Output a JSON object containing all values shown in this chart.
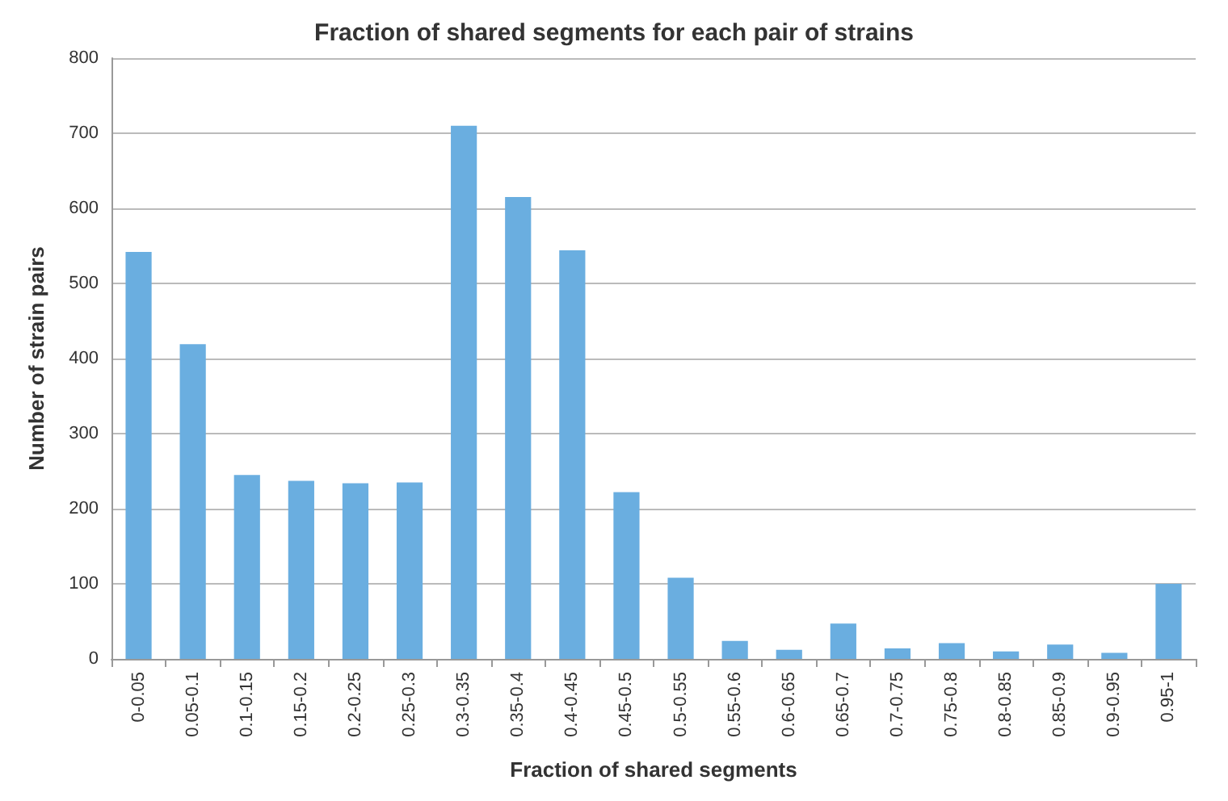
{
  "chart_data": {
    "type": "bar",
    "title": "Fraction of shared segments for each pair of strains",
    "xlabel": "Fraction of shared segments",
    "ylabel": "Number of strain pairs",
    "categories": [
      "0-0.05",
      "0.05-0.1",
      "0.1-0.15",
      "0.15-0.2",
      "0.2-0.25",
      "0.25-0.3",
      "0.3-0.35",
      "0.35-0.4",
      "0.4-0.45",
      "0.45-0.5",
      "0.5-0.55",
      "0.55-0.6",
      "0.6-0.65",
      "0.65-0.7",
      "0.7-0.75",
      "0.75-0.8",
      "0.8-0.85",
      "0.85-0.9",
      "0.9-0.95",
      "0.95-1"
    ],
    "values": [
      542,
      419,
      245,
      237,
      234,
      235,
      710,
      615,
      544,
      222,
      108,
      24,
      12,
      47,
      14,
      21,
      10,
      19,
      8,
      100
    ],
    "color": "#6aaee0",
    "ylim": [
      0,
      800
    ],
    "yticks": [
      0,
      100,
      200,
      300,
      400,
      500,
      600,
      700,
      800
    ],
    "grid": "y"
  }
}
